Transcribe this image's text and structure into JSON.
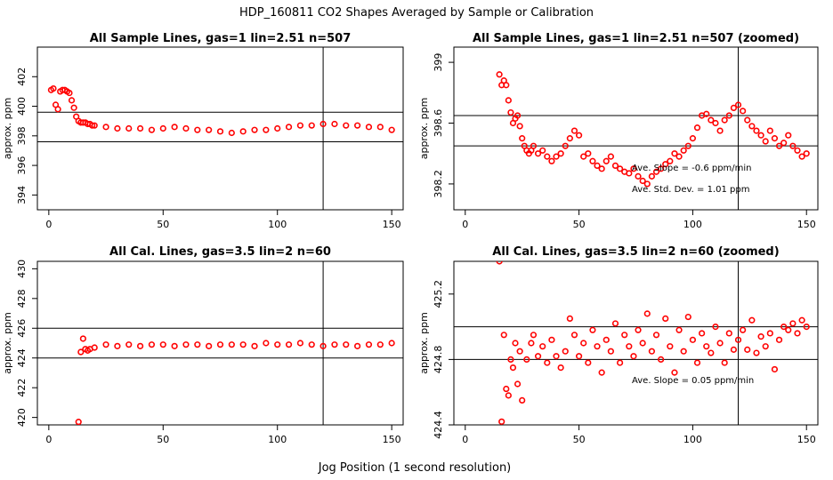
{
  "title": "HDP_160811  CO2 Shapes Averaged by Sample or Calibration",
  "xlabel": "Jog Position (1 second resolution)",
  "colors": {
    "points": "#ff0000",
    "lines": "#000000"
  },
  "chart_data": [
    {
      "id": "p1",
      "type": "scatter",
      "title": "All Sample Lines, gas=1 lin=2.51 n=507",
      "xlabel": "",
      "ylabel": "approx. ppm",
      "xlim": [
        -5,
        155
      ],
      "ylim": [
        393,
        404
      ],
      "xticks": [
        0,
        50,
        100,
        150
      ],
      "yticks": [
        394,
        396,
        398,
        400,
        402
      ],
      "hlines": [
        399.6,
        397.6
      ],
      "vlines": [
        120
      ],
      "annotations": [],
      "x": [
        1,
        2,
        3,
        4,
        5,
        6,
        7,
        8,
        9,
        10,
        11,
        12,
        13,
        14,
        15,
        16,
        17,
        18,
        19,
        20,
        25,
        30,
        35,
        40,
        45,
        50,
        55,
        60,
        65,
        70,
        75,
        80,
        85,
        90,
        95,
        100,
        105,
        110,
        115,
        120,
        125,
        130,
        135,
        140,
        145,
        150
      ],
      "y": [
        401.1,
        401.2,
        400.1,
        399.8,
        401.0,
        401.1,
        401.1,
        401.0,
        400.9,
        400.4,
        399.9,
        399.3,
        399.0,
        398.9,
        398.9,
        398.9,
        398.8,
        398.8,
        398.7,
        398.7,
        398.6,
        398.5,
        398.5,
        398.5,
        398.4,
        398.5,
        398.6,
        398.5,
        398.4,
        398.4,
        398.3,
        398.2,
        398.3,
        398.4,
        398.4,
        398.5,
        398.6,
        398.7,
        398.7,
        398.8,
        398.8,
        398.7,
        398.7,
        398.6,
        398.6,
        398.4
      ]
    },
    {
      "id": "p2",
      "type": "scatter",
      "title": "All Sample Lines, gas=1 lin=2.51 n=507 (zoomed)",
      "xlabel": "",
      "ylabel": "approx. ppm",
      "xlim": [
        -5,
        155
      ],
      "ylim": [
        398.03,
        399.1
      ],
      "xticks": [
        0,
        50,
        100,
        150
      ],
      "yticks": [
        398.2,
        398.6,
        399.0
      ],
      "hlines": [
        398.65,
        398.45
      ],
      "vlines": [
        120
      ],
      "annotations": [
        "Ave. Slope =  -0.6  ppm/min",
        "Ave. Std. Dev. =  1.01  ppm"
      ],
      "x": [
        15,
        16,
        17,
        18,
        19,
        20,
        21,
        22,
        23,
        24,
        25,
        26,
        27,
        28,
        29,
        30,
        32,
        34,
        36,
        38,
        40,
        42,
        44,
        46,
        48,
        50,
        52,
        54,
        56,
        58,
        60,
        62,
        64,
        66,
        68,
        70,
        72,
        74,
        76,
        78,
        80,
        82,
        84,
        86,
        88,
        90,
        92,
        94,
        96,
        98,
        100,
        102,
        104,
        106,
        108,
        110,
        112,
        114,
        116,
        118,
        120,
        122,
        124,
        126,
        128,
        130,
        132,
        134,
        136,
        138,
        140,
        142,
        144,
        146,
        148,
        150
      ],
      "y": [
        398.92,
        398.85,
        398.88,
        398.85,
        398.75,
        398.67,
        398.6,
        398.63,
        398.65,
        398.58,
        398.5,
        398.45,
        398.42,
        398.4,
        398.42,
        398.45,
        398.4,
        398.42,
        398.38,
        398.35,
        398.38,
        398.4,
        398.45,
        398.5,
        398.55,
        398.52,
        398.38,
        398.4,
        398.35,
        398.32,
        398.3,
        398.35,
        398.38,
        398.32,
        398.3,
        398.28,
        398.27,
        398.3,
        398.25,
        398.22,
        398.2,
        398.25,
        398.28,
        398.3,
        398.33,
        398.35,
        398.4,
        398.38,
        398.42,
        398.45,
        398.5,
        398.57,
        398.65,
        398.66,
        398.62,
        398.6,
        398.55,
        398.62,
        398.65,
        398.7,
        398.72,
        398.68,
        398.62,
        398.58,
        398.55,
        398.52,
        398.48,
        398.55,
        398.5,
        398.45,
        398.47,
        398.52,
        398.45,
        398.42,
        398.38,
        398.4
      ]
    },
    {
      "id": "p3",
      "type": "scatter",
      "title": "All Cal. Lines, gas=3.5 lin=2 n=60",
      "xlabel": "",
      "ylabel": "approx. ppm",
      "xlim": [
        -5,
        155
      ],
      "ylim": [
        419.5,
        430.5
      ],
      "xticks": [
        0,
        50,
        100,
        150
      ],
      "yticks": [
        420,
        422,
        424,
        426,
        428,
        430
      ],
      "hlines": [
        426.0,
        424.0
      ],
      "vlines": [
        120
      ],
      "annotations": [],
      "x": [
        13,
        14,
        15,
        16,
        17,
        18,
        20,
        25,
        30,
        35,
        40,
        45,
        50,
        55,
        60,
        65,
        70,
        75,
        80,
        85,
        90,
        95,
        100,
        105,
        110,
        115,
        120,
        125,
        130,
        135,
        140,
        145,
        150
      ],
      "y": [
        419.7,
        424.4,
        425.3,
        424.6,
        424.5,
        424.6,
        424.7,
        424.9,
        424.8,
        424.9,
        424.8,
        424.9,
        424.9,
        424.8,
        424.9,
        424.9,
        424.8,
        424.9,
        424.9,
        424.9,
        424.8,
        425.0,
        424.9,
        424.9,
        425.0,
        424.9,
        424.8,
        424.9,
        424.9,
        424.8,
        424.9,
        424.9,
        425.0
      ]
    },
    {
      "id": "p4",
      "type": "scatter",
      "title": "All Cal. Lines, gas=3.5 lin=2 n=60 (zoomed)",
      "xlabel": "",
      "ylabel": "approx. ppm",
      "xlim": [
        -5,
        155
      ],
      "ylim": [
        424.4,
        425.4
      ],
      "xticks": [
        0,
        50,
        100,
        150
      ],
      "yticks": [
        424.4,
        424.8,
        425.2
      ],
      "hlines": [
        425.0,
        424.8
      ],
      "vlines": [
        120
      ],
      "annotations": [
        "Ave. Slope =  0.05  ppm/min"
      ],
      "x": [
        15,
        16,
        17,
        18,
        19,
        20,
        21,
        22,
        23,
        24,
        25,
        27,
        29,
        30,
        32,
        34,
        36,
        38,
        40,
        42,
        44,
        46,
        48,
        50,
        52,
        54,
        56,
        58,
        60,
        62,
        64,
        66,
        68,
        70,
        72,
        74,
        76,
        78,
        80,
        82,
        84,
        86,
        88,
        90,
        92,
        94,
        96,
        98,
        100,
        102,
        104,
        106,
        108,
        110,
        112,
        114,
        116,
        118,
        120,
        122,
        124,
        126,
        128,
        130,
        132,
        134,
        136,
        138,
        140,
        142,
        144,
        146,
        148,
        150
      ],
      "y": [
        425.4,
        424.42,
        424.95,
        424.62,
        424.58,
        424.8,
        424.75,
        424.9,
        424.65,
        424.85,
        424.55,
        424.8,
        424.9,
        424.95,
        424.82,
        424.88,
        424.78,
        424.92,
        424.82,
        424.75,
        424.85,
        425.05,
        424.95,
        424.82,
        424.9,
        424.78,
        424.98,
        424.88,
        424.72,
        424.92,
        424.85,
        425.02,
        424.78,
        424.95,
        424.88,
        424.82,
        424.98,
        424.9,
        425.08,
        424.85,
        424.95,
        424.8,
        425.05,
        424.88,
        424.72,
        424.98,
        424.85,
        425.06,
        424.92,
        424.78,
        424.96,
        424.88,
        424.84,
        425.0,
        424.9,
        424.78,
        424.96,
        424.86,
        424.92,
        424.98,
        424.86,
        425.04,
        424.84,
        424.94,
        424.88,
        424.96,
        424.74,
        424.92,
        425.0,
        424.98,
        425.02,
        424.96,
        425.04,
        425.0
      ]
    }
  ]
}
